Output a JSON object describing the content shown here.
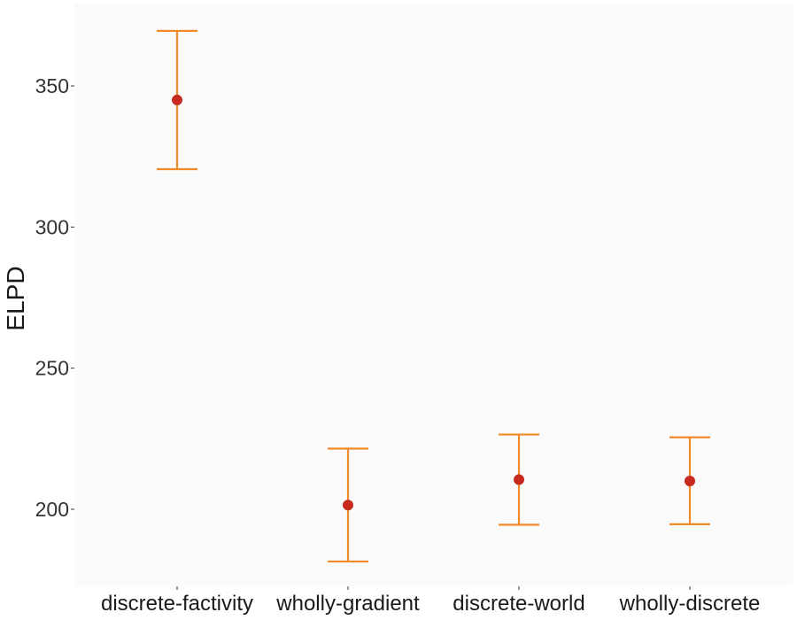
{
  "chart_data": {
    "type": "scatter",
    "ylabel": "ELPD",
    "xlabel": "",
    "ylim": [
      172,
      375
    ],
    "yticks": [
      200,
      250,
      300,
      350
    ],
    "categories": [
      "discrete-factivity",
      "wholly-gradient",
      "discrete-world",
      "wholly-discrete"
    ],
    "series": [
      {
        "name": "ELPD",
        "values": [
          345,
          201.5,
          210.5,
          210
        ],
        "lower": [
          320.5,
          181.5,
          194.5,
          194.7
        ],
        "upper": [
          369.5,
          221.5,
          226.5,
          225.5
        ]
      }
    ],
    "colors": {
      "point": "#c62a1e",
      "errorbar": "#f28a2a",
      "panel": "#fbfbfb"
    }
  }
}
